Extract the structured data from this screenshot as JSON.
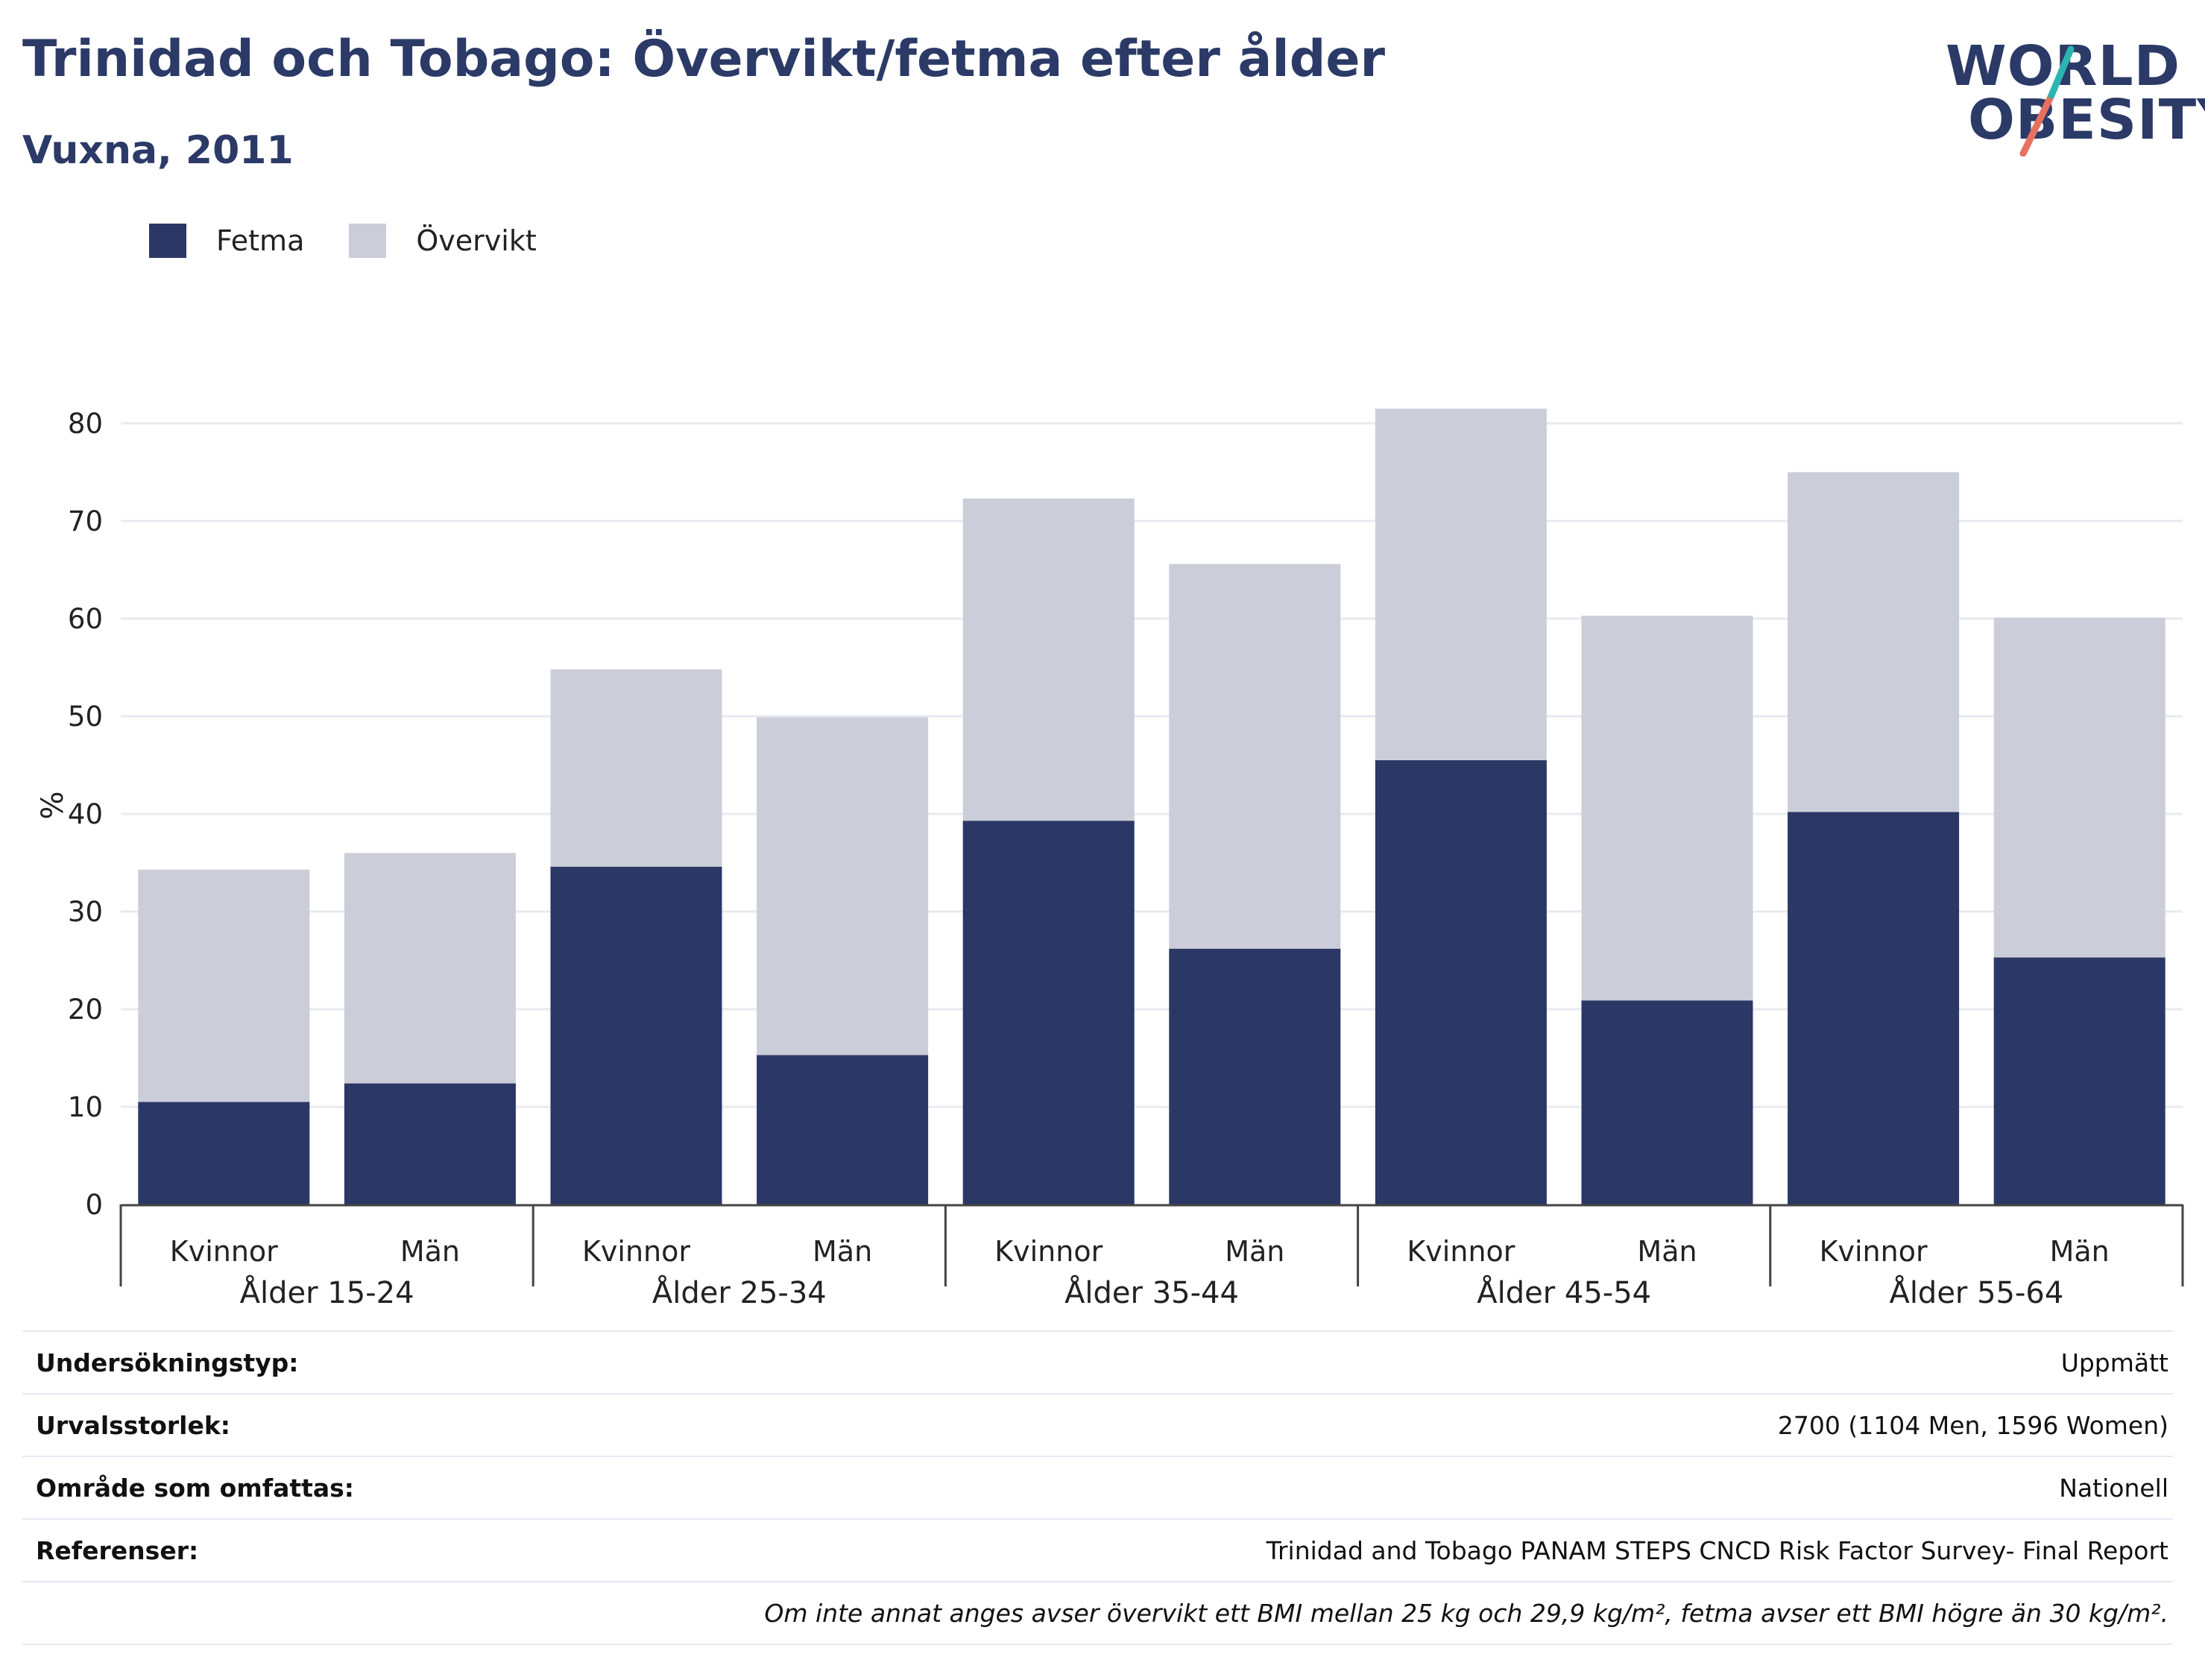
{
  "header": {
    "title": "Trinidad och Tobago: Övervikt/fetma efter ålder",
    "subtitle": "Vuxna, 2011"
  },
  "logo": {
    "line1": "WORLD",
    "line2": "OBESITY",
    "colors": {
      "text": "#2b3a67",
      "teal": "#2bb5b0",
      "coral": "#e8705f"
    }
  },
  "legend": [
    {
      "label": "Fetma",
      "color": "#2b3765"
    },
    {
      "label": "Övervikt",
      "color": "#cbcdd9"
    }
  ],
  "chart_data": {
    "type": "bar",
    "stacked": true,
    "ylabel": "%",
    "ylim": [
      0,
      85
    ],
    "yticks": [
      0,
      10,
      20,
      30,
      40,
      50,
      60,
      70,
      80
    ],
    "grid": true,
    "legend_position": "top-left",
    "groups": [
      "Ålder 15-24",
      "Ålder 25-34",
      "Ålder 35-44",
      "Ålder 45-54",
      "Ålder 55-64"
    ],
    "categories": [
      "Kvinnor",
      "Män",
      "Kvinnor",
      "Män",
      "Kvinnor",
      "Män",
      "Kvinnor",
      "Män",
      "Kvinnor",
      "Män"
    ],
    "series": [
      {
        "name": "Fetma",
        "color": "#2b3765",
        "values": [
          10.5,
          12.4,
          34.6,
          15.3,
          39.3,
          26.2,
          45.5,
          20.9,
          40.2,
          25.3
        ]
      },
      {
        "name": "Övervikt",
        "color": "#cbcdd9",
        "values": [
          23.8,
          23.6,
          20.2,
          34.6,
          33.0,
          39.4,
          36.0,
          39.4,
          34.8,
          34.8
        ]
      }
    ]
  },
  "info": {
    "rows": [
      {
        "label": "Undersökningstyp:",
        "value": "Uppmätt"
      },
      {
        "label": "Urvalsstorlek:",
        "value": "2700 (1104 Men, 1596 Women)"
      },
      {
        "label": "Område som omfattas:",
        "value": "Nationell"
      },
      {
        "label": "Referenser:",
        "value": "Trinidad and Tobago PANAM STEPS CNCD Risk Factor Survey- Final Report"
      }
    ],
    "note": "Om inte annat anges avser övervikt ett BMI mellan 25 kg och 29,9 kg/m², fetma avser ett BMI högre än 30 kg/m²."
  }
}
